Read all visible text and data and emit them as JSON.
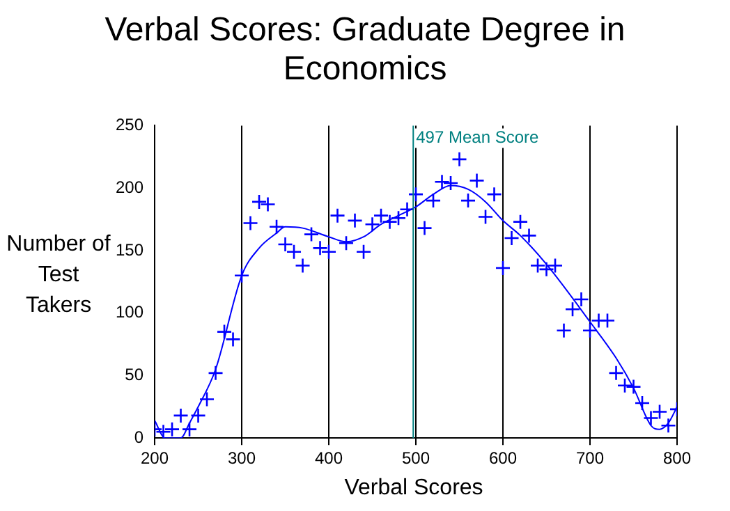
{
  "chart_data": {
    "type": "scatter",
    "title": "Verbal Scores: Graduate Degree in Economics",
    "xlabel": "Verbal Scores",
    "ylabel": "Number of Test Takers",
    "xlim": [
      200,
      800
    ],
    "xticks": [
      200,
      300,
      400,
      500,
      600,
      700,
      800
    ],
    "ylim": [
      0,
      250
    ],
    "yticks": [
      0,
      50,
      100,
      150,
      200,
      250
    ],
    "grid": "x",
    "legend": false,
    "marker": "cross",
    "ref_lines": [
      {
        "axis": "x",
        "value": 497,
        "label": "497 Mean Score",
        "color": "#008080"
      }
    ],
    "series": [
      {
        "color": "#0000ff",
        "x": [
          200,
          210,
          220,
          230,
          240,
          250,
          260,
          270,
          280,
          290,
          300,
          310,
          320,
          330,
          340,
          350,
          360,
          370,
          380,
          390,
          400,
          410,
          420,
          430,
          440,
          450,
          460,
          470,
          480,
          490,
          500,
          510,
          520,
          530,
          540,
          550,
          560,
          570,
          580,
          590,
          600,
          610,
          620,
          630,
          640,
          650,
          660,
          670,
          680,
          690,
          700,
          710,
          720,
          730,
          740,
          750,
          760,
          770,
          780,
          790,
          800
        ],
        "values": [
          7,
          5,
          7,
          18,
          7,
          18,
          31,
          52,
          85,
          79,
          130,
          172,
          189,
          187,
          169,
          155,
          149,
          138,
          163,
          152,
          149,
          178,
          156,
          174,
          149,
          171,
          178,
          173,
          176,
          183,
          195,
          168,
          190,
          205,
          204,
          223,
          190,
          206,
          177,
          195,
          136,
          160,
          173,
          162,
          138,
          135,
          138,
          86,
          103,
          111,
          86,
          94,
          94,
          52,
          42,
          41,
          28,
          16,
          21,
          10,
          23
        ]
      },
      {
        "type": "line",
        "color": "#0000ff",
        "marker": "none",
        "x": [
          200,
          212,
          230,
          240,
          250,
          270,
          300,
          320,
          340,
          350,
          370,
          400,
          420,
          440,
          460,
          480,
          500,
          520,
          540,
          560,
          580,
          600,
          620,
          650,
          700,
          730,
          750,
          770,
          780,
          790,
          800
        ],
        "values": [
          14,
          0,
          0,
          12,
          25,
          55,
          130,
          152,
          164,
          169,
          168,
          161,
          157,
          161,
          171,
          178,
          185,
          195,
          202,
          199,
          189,
          174,
          162,
          139,
          93,
          64,
          40,
          10,
          7,
          12,
          25
        ]
      }
    ]
  }
}
